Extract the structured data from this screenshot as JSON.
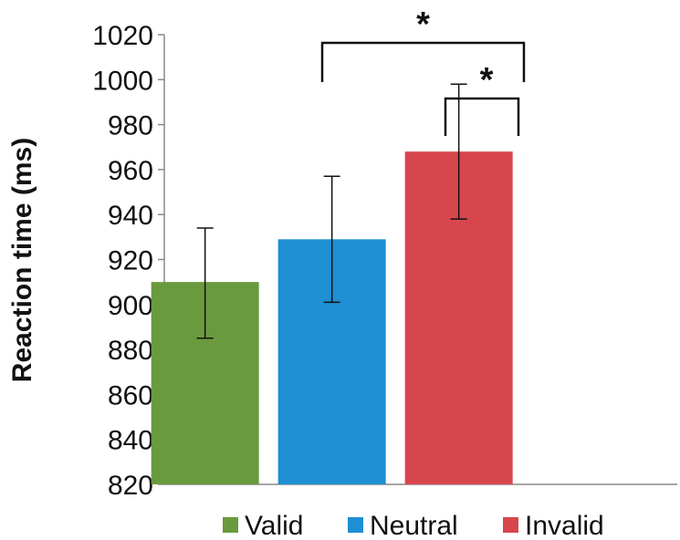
{
  "chart_data": {
    "type": "bar",
    "title": "",
    "xlabel": "",
    "ylabel": "Reaction time (ms)",
    "ylim": [
      820,
      1020
    ],
    "yticks": [
      820,
      840,
      860,
      880,
      900,
      920,
      940,
      960,
      980,
      1000,
      1020
    ],
    "categories": [
      "Valid",
      "Neutral",
      "Invalid"
    ],
    "values": [
      910,
      929,
      968
    ],
    "error_low": [
      885,
      901,
      938
    ],
    "error_high": [
      934,
      957,
      998
    ],
    "colors": [
      "#6a9a3e",
      "#1f8fd3",
      "#d8464d"
    ],
    "legend": {
      "placement": "bottom",
      "entries": [
        "Valid",
        "Neutral",
        "Invalid"
      ]
    },
    "significance": [
      {
        "from": "Valid",
        "to": "Invalid",
        "label": "*",
        "level": 1015
      },
      {
        "from": "Neutral",
        "to": "Invalid",
        "label": "*",
        "level": 990
      }
    ],
    "grid": false
  }
}
